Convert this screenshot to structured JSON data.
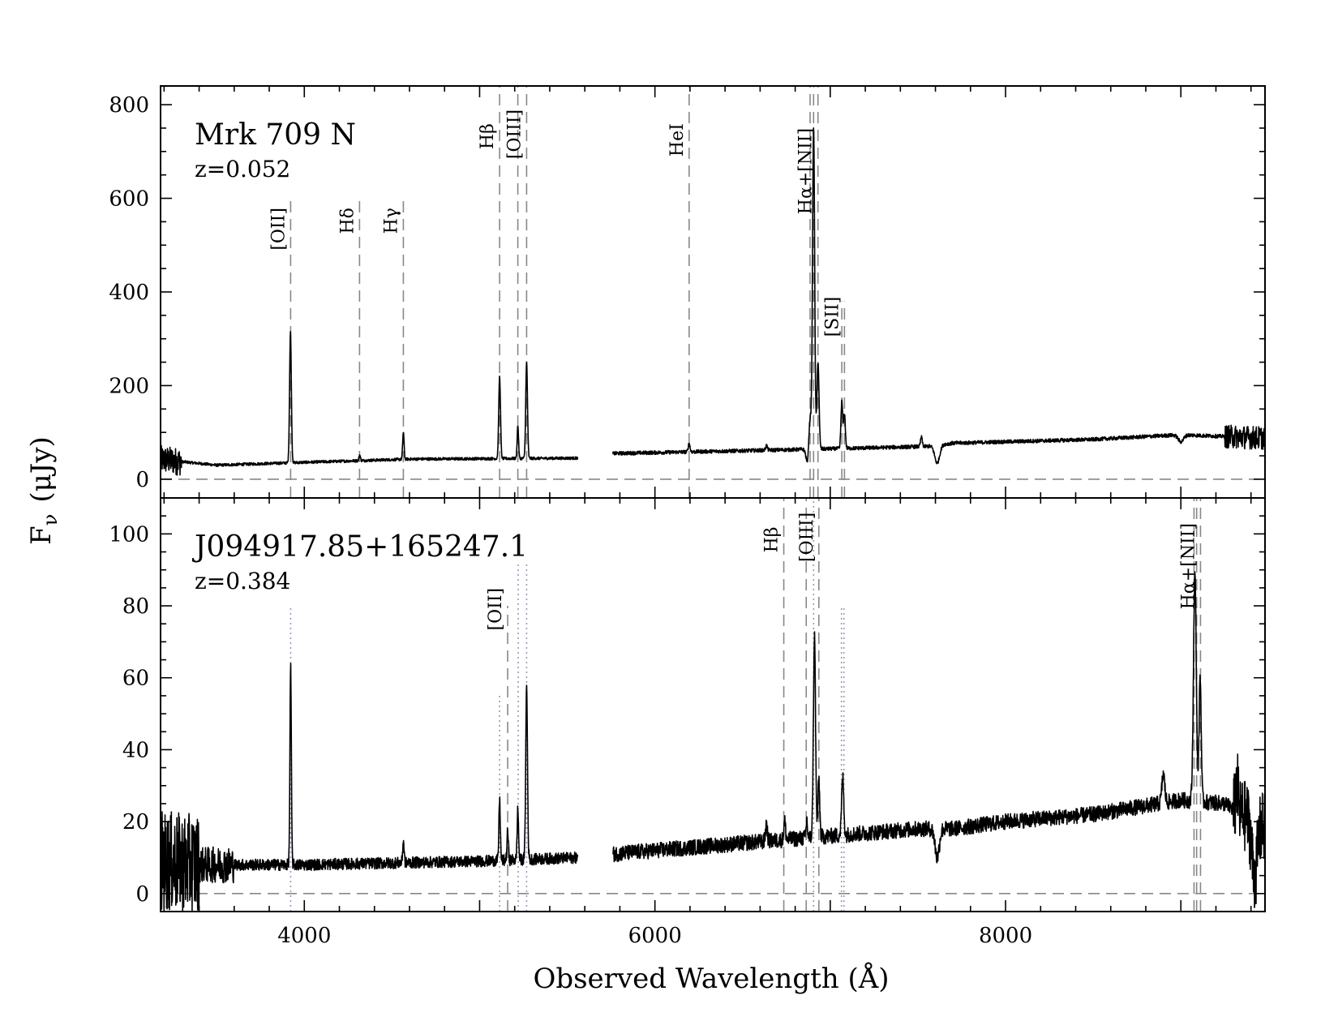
{
  "chart_data": {
    "type": "line",
    "xlabel": "Observed Wavelength (Å)",
    "ylabel": "F",
    "ylabel_sub": "ν",
    "ylabel_unit": "(μJy)",
    "xlim": [
      3180,
      9480
    ],
    "xticks": [
      4000,
      6000,
      8000
    ],
    "gap": [
      5560,
      5760
    ],
    "panels": [
      {
        "object": "Mrk 709 N",
        "redshift_label": "z=0.052",
        "redshift": 0.052,
        "ylim": [
          -40,
          840
        ],
        "yticks": [
          0,
          200,
          400,
          600,
          800
        ],
        "continuum": [
          [
            3180,
            42
          ],
          [
            3500,
            30
          ],
          [
            4000,
            36
          ],
          [
            4600,
            43
          ],
          [
            5550,
            45
          ],
          [
            5760,
            55
          ],
          [
            6400,
            60
          ],
          [
            7000,
            65
          ],
          [
            7550,
            70
          ],
          [
            7700,
            77
          ],
          [
            8000,
            80
          ],
          [
            8500,
            85
          ],
          [
            9000,
            95
          ],
          [
            9480,
            88
          ]
        ],
        "emission_lines": [
          {
            "wave": 3921,
            "peak": 280,
            "width": 5
          },
          {
            "wave": 4316,
            "peak": 12,
            "width": 4
          },
          {
            "wave": 4565,
            "peak": 58,
            "width": 4
          },
          {
            "wave": 5114,
            "peak": 175,
            "width": 5
          },
          {
            "wave": 5218,
            "peak": 70,
            "width": 4
          },
          {
            "wave": 5268,
            "peak": 205,
            "width": 5
          },
          {
            "wave": 6195,
            "peak": 18,
            "width": 5
          },
          {
            "wave": 6636,
            "peak": 10,
            "width": 5
          },
          {
            "wave": 6885,
            "peak": 70,
            "width": 7
          },
          {
            "wave": 6905,
            "peak": 690,
            "width": 6
          },
          {
            "wave": 6930,
            "peak": 185,
            "width": 6
          },
          {
            "wave": 7066,
            "peak": 100,
            "width": 5
          },
          {
            "wave": 7081,
            "peak": 75,
            "width": 5
          },
          {
            "wave": 7520,
            "peak": 20,
            "width": 5
          }
        ],
        "absorption_lines": [
          {
            "wave": 6870,
            "depth": 30,
            "width": 8
          },
          {
            "wave": 7610,
            "depth": 38,
            "width": 14
          },
          {
            "wave": 9000,
            "depth": 15,
            "width": 15
          }
        ],
        "noise": [
          {
            "from": 3180,
            "to": 3300,
            "amp": 30
          },
          {
            "from": 3300,
            "to": 5560,
            "amp": 3
          },
          {
            "from": 5760,
            "to": 9250,
            "amp": 4
          },
          {
            "from": 9250,
            "to": 9480,
            "amp": 25
          }
        ],
        "markers": [
          {
            "label": "[OII]",
            "wave": 3922,
            "style": "dashed",
            "top": 600,
            "label_y": 580
          },
          {
            "label": "Hδ",
            "wave": 4315,
            "style": "dashed",
            "top": 600,
            "label_y": 580
          },
          {
            "label": "Hγ",
            "wave": 4565,
            "style": "dashed",
            "top": 600,
            "label_y": 580
          },
          {
            "label": "Hβ",
            "wave": 5114,
            "style": "dashed",
            "top": 840,
            "label_y": 760
          },
          {
            "label": "",
            "wave": 5218,
            "style": "dashed",
            "top": 840
          },
          {
            "label": "[OIII]",
            "wave": 5268,
            "style": "dashed",
            "top": 840,
            "label_y": 790
          },
          {
            "label": "HeI",
            "wave": 6195,
            "style": "dashed",
            "top": 840,
            "label_y": 760
          },
          {
            "label": "",
            "wave": 6885,
            "style": "dashed",
            "top": 840
          },
          {
            "label": "",
            "wave": 6905,
            "style": "dashed",
            "top": 840
          },
          {
            "label": "Hα+[NII]",
            "wave": 6930,
            "style": "dashed",
            "top": 840,
            "label_y": 750
          },
          {
            "label": "",
            "wave": 7066,
            "style": "dashed",
            "top": 380
          },
          {
            "label": "[SII]",
            "wave": 7081,
            "style": "dashed",
            "top": 380,
            "label_y": 390
          }
        ]
      },
      {
        "object": "J094917.85+165247.1",
        "redshift_label": "z=0.384",
        "redshift": 0.384,
        "ylim": [
          -5,
          110
        ],
        "yticks": [
          0,
          20,
          40,
          60,
          80,
          100
        ],
        "continuum": [
          [
            3180,
            9
          ],
          [
            3400,
            8
          ],
          [
            4000,
            8
          ],
          [
            5000,
            9
          ],
          [
            5560,
            10
          ],
          [
            5760,
            11
          ],
          [
            6500,
            14
          ],
          [
            7000,
            16
          ],
          [
            7500,
            18
          ],
          [
            7700,
            18
          ],
          [
            8000,
            20
          ],
          [
            8500,
            22
          ],
          [
            9000,
            26
          ],
          [
            9250,
            25
          ],
          [
            9480,
            18
          ]
        ],
        "emission_lines": [
          {
            "wave": 3922,
            "peak": 55,
            "width": 4
          },
          {
            "wave": 4565,
            "peak": 6,
            "width": 4
          },
          {
            "wave": 5114,
            "peak": 17,
            "width": 4
          },
          {
            "wave": 5160,
            "peak": 8,
            "width": 4
          },
          {
            "wave": 5218,
            "peak": 14,
            "width": 4
          },
          {
            "wave": 5268,
            "peak": 48,
            "width": 5
          },
          {
            "wave": 6636,
            "peak": 5,
            "width": 5
          },
          {
            "wave": 6740,
            "peak": 5,
            "width": 5
          },
          {
            "wave": 6866,
            "peak": 5,
            "width": 4
          },
          {
            "wave": 6910,
            "peak": 56,
            "width": 6
          },
          {
            "wave": 6935,
            "peak": 16,
            "width": 5
          },
          {
            "wave": 7071,
            "peak": 16,
            "width": 6
          },
          {
            "wave": 8900,
            "peak": 8,
            "width": 8
          },
          {
            "wave": 9080,
            "peak": 63,
            "width": 8
          },
          {
            "wave": 9110,
            "peak": 35,
            "width": 6
          },
          {
            "wave": 9320,
            "peak": 8,
            "width": 6
          }
        ],
        "absorption_lines": [
          {
            "wave": 7610,
            "depth": 8,
            "width": 12
          },
          {
            "wave": 9420,
            "depth": 15,
            "width": 15
          }
        ],
        "noise": [
          {
            "from": 3180,
            "to": 3400,
            "amp": 14
          },
          {
            "from": 3400,
            "to": 3600,
            "amp": 5
          },
          {
            "from": 3600,
            "to": 5560,
            "amp": 1.6
          },
          {
            "from": 5760,
            "to": 9300,
            "amp": 2.2
          },
          {
            "from": 9300,
            "to": 9480,
            "amp": 10
          }
        ],
        "markers": [
          {
            "label": "",
            "wave": 3922,
            "style": "dotted",
            "top": 80
          },
          {
            "label": "",
            "wave": 5114,
            "style": "dotted",
            "top": 55
          },
          {
            "label": "[OII]",
            "wave": 5160,
            "style": "dashed",
            "top": 80,
            "label_y": 85
          },
          {
            "label": "",
            "wave": 5220,
            "style": "dotted",
            "top": 92
          },
          {
            "label": "",
            "wave": 5268,
            "style": "dotted",
            "top": 92
          },
          {
            "label": "Hβ",
            "wave": 6735,
            "style": "dashed",
            "top": 110,
            "label_y": 102
          },
          {
            "label": "",
            "wave": 6863,
            "style": "dashed",
            "top": 110
          },
          {
            "label": "",
            "wave": 6905,
            "style": "dotted",
            "top": 110
          },
          {
            "label": "[OIII]",
            "wave": 6935,
            "style": "dashed",
            "top": 110,
            "label_y": 106
          },
          {
            "label": "",
            "wave": 7064,
            "style": "dotted",
            "top": 80
          },
          {
            "label": "",
            "wave": 7078,
            "style": "dotted",
            "top": 80
          },
          {
            "label": "",
            "wave": 9075,
            "style": "dashed",
            "top": 110
          },
          {
            "label": "",
            "wave": 9090,
            "style": "dashed",
            "top": 110
          },
          {
            "label": "Hα+[NII]",
            "wave": 9112,
            "style": "dashed",
            "top": 110,
            "label_y": 103
          }
        ]
      }
    ]
  }
}
